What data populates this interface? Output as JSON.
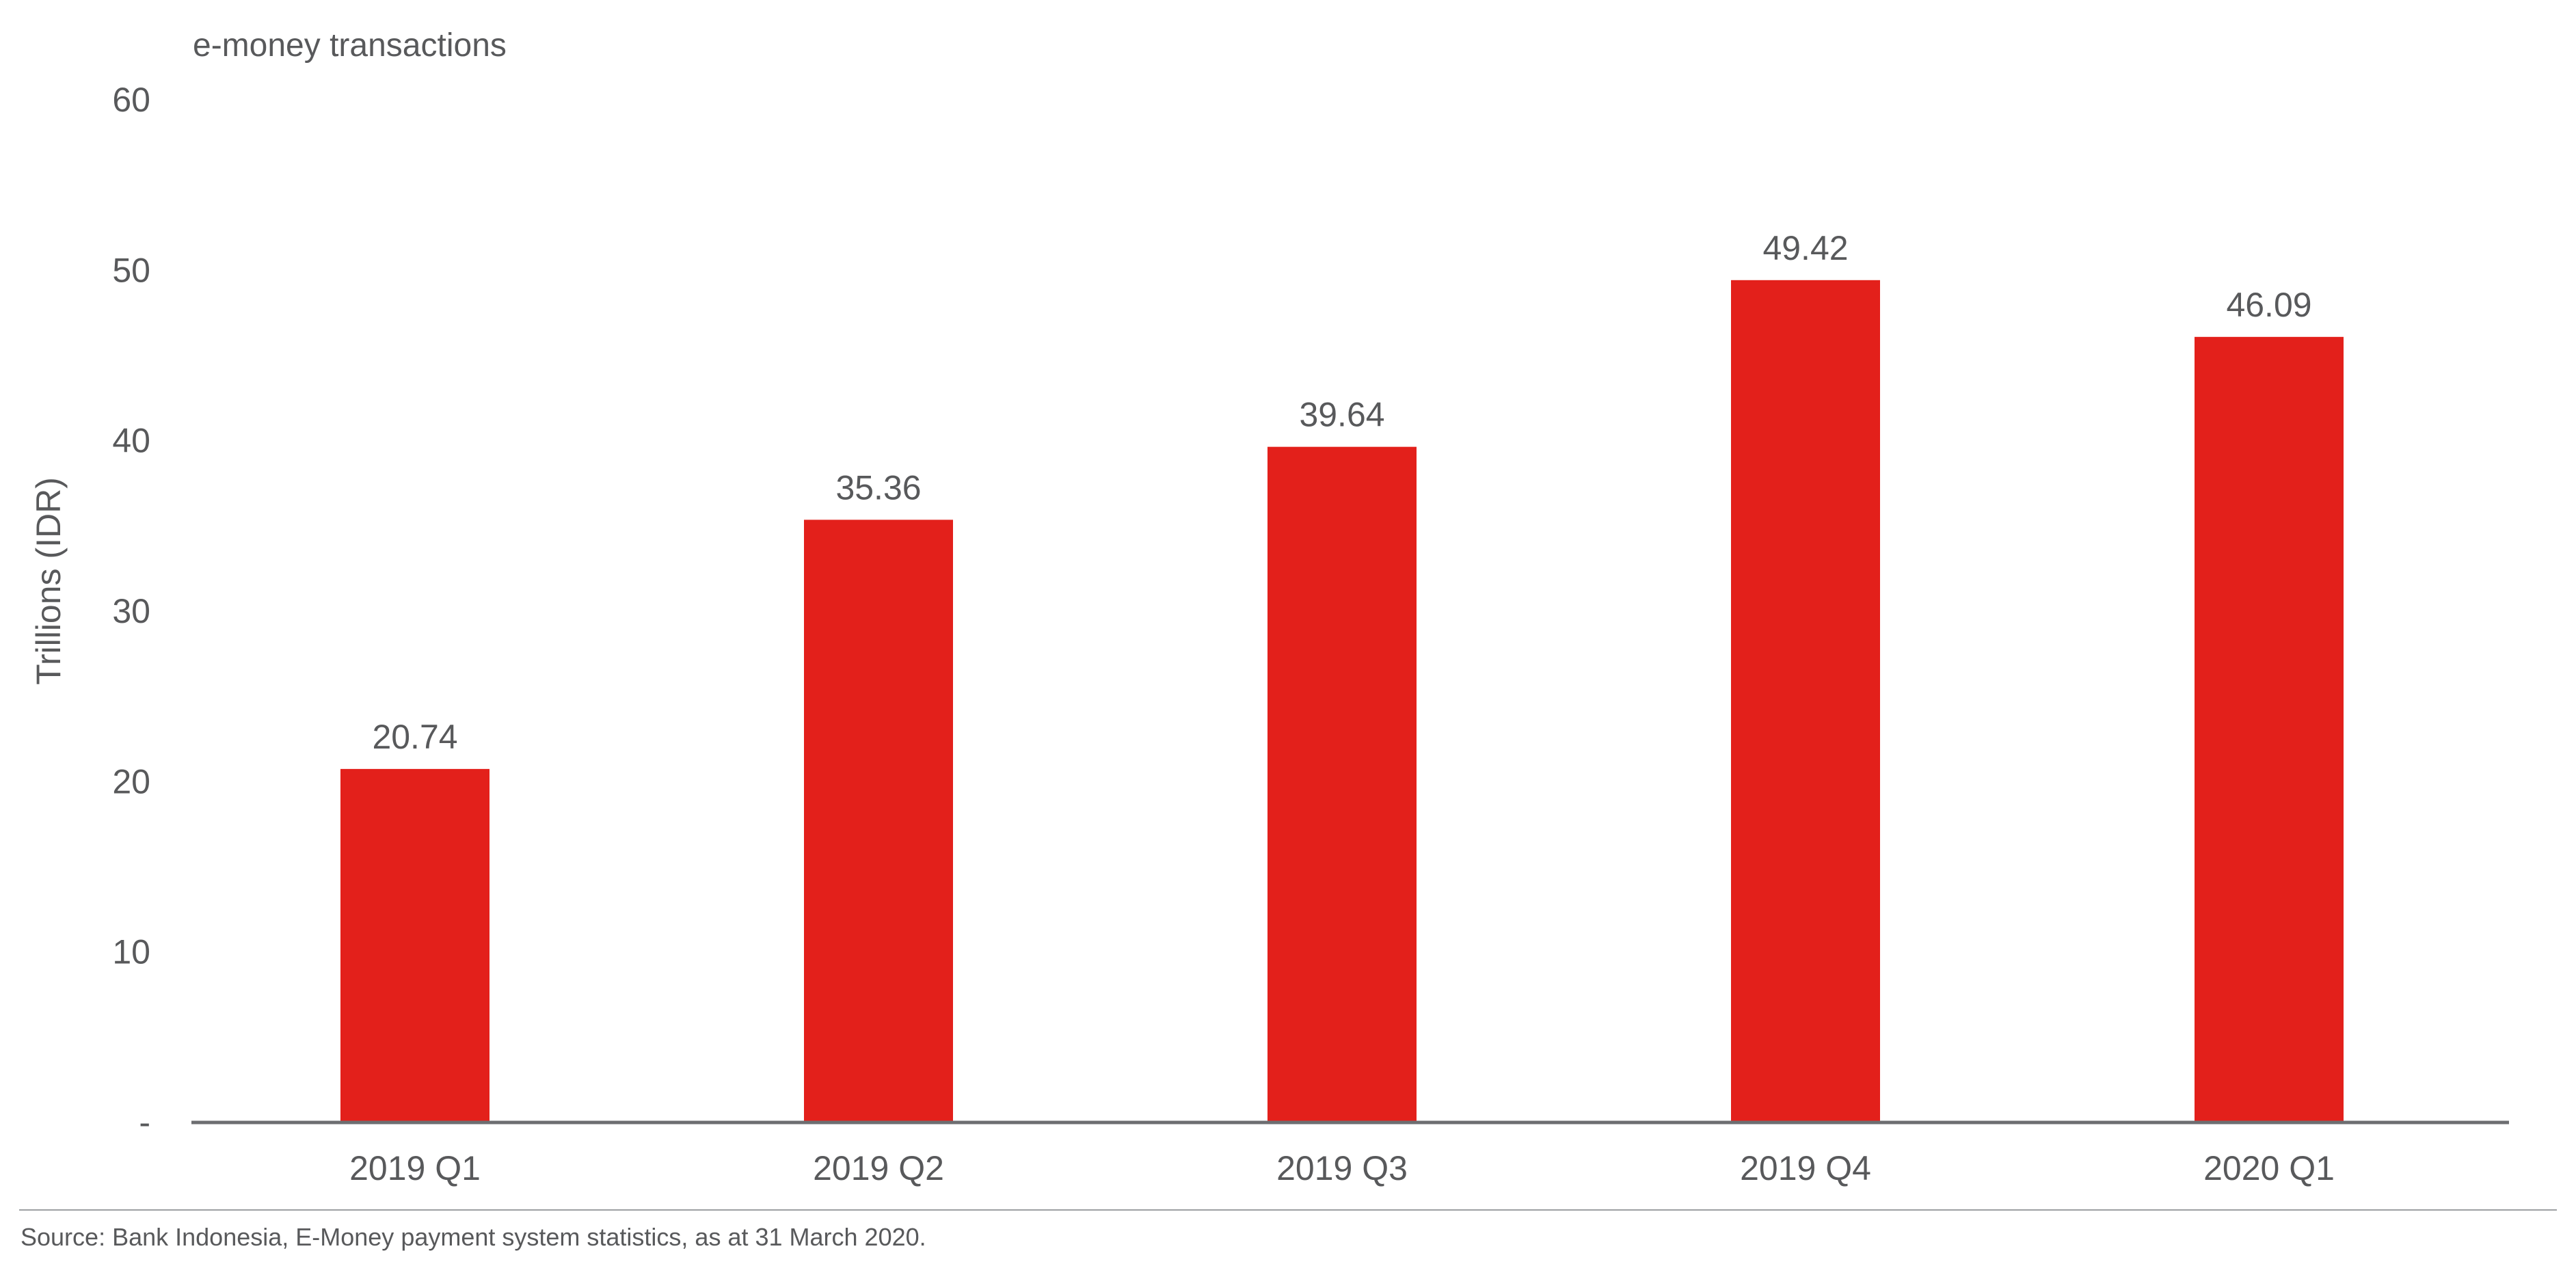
{
  "chart_data": {
    "type": "bar",
    "title": "e-money transactions",
    "ylabel": "Trillions (IDR)",
    "xlabel": "",
    "categories": [
      "2019 Q1",
      "2019 Q2",
      "2019 Q3",
      "2019 Q4",
      "2020 Q1"
    ],
    "values": [
      20.74,
      35.36,
      39.64,
      49.42,
      46.09
    ],
    "value_labels": [
      "20.74",
      "35.36",
      "39.64",
      "49.42",
      "46.09"
    ],
    "ylim": [
      0,
      60
    ],
    "yticks": [
      0,
      10,
      20,
      30,
      40,
      50,
      60
    ],
    "ytick_labels": [
      "-",
      "10",
      "20",
      "30",
      "40",
      "50",
      "60"
    ],
    "grid": false,
    "legend": "none",
    "bar_color": "#e3201b",
    "axis_color": "#6d6e71"
  },
  "source": "Source: Bank Indonesia, E-Money payment system statistics, as at 31 March 2020."
}
